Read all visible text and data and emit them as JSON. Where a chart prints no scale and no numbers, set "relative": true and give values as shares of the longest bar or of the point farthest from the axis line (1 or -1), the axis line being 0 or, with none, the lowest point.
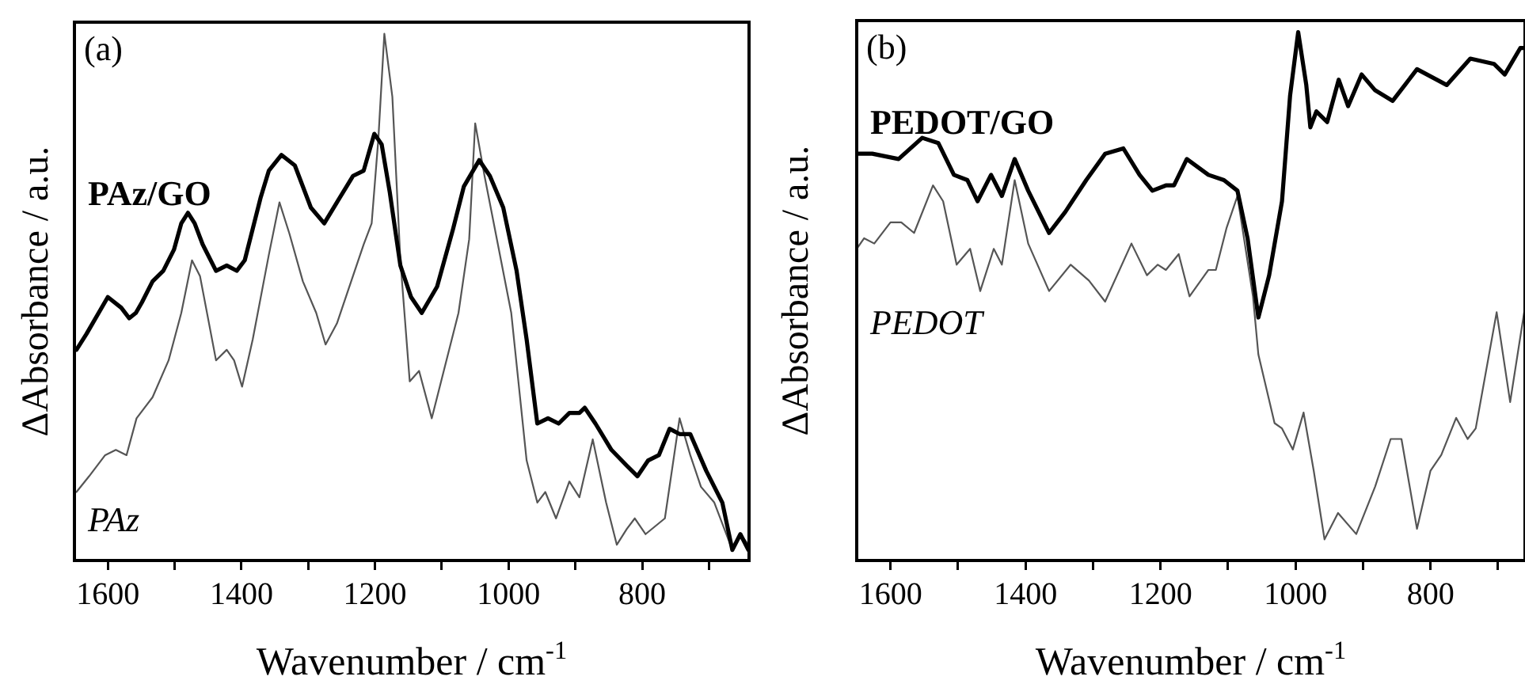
{
  "chart_data": [
    {
      "type": "line",
      "title": "(a)",
      "xlabel": "Wavenumber / cm$^{-1}$",
      "ylabel": "ΔAbsorbance / a.u.",
      "relative": true,
      "grid": false,
      "legend": false,
      "marker": "none",
      "line_style": "solid",
      "xlim": [
        1650,
        640
      ],
      "xticks": [
        1600,
        {
          "value": 1500,
          "label": null
        },
        1400,
        {
          "value": 1300,
          "label": null
        },
        1200,
        {
          "value": 1100,
          "label": null
        },
        1000,
        {
          "value": 900,
          "label": null
        },
        800,
        {
          "value": 700,
          "label": null
        }
      ],
      "series": [
        {
          "name": "PAz/GO",
          "color": "#000000",
          "x": [
            1647,
            1632,
            1600,
            1580,
            1568,
            1558,
            1549,
            1533,
            1517,
            1501,
            1490,
            1480,
            1470,
            1458,
            1438,
            1422,
            1407,
            1395,
            1383,
            1371,
            1359,
            1340,
            1320,
            1296,
            1276,
            1257,
            1233,
            1217,
            1201,
            1190,
            1178,
            1162,
            1146,
            1130,
            1107,
            1083,
            1067,
            1044,
            1028,
            1008,
            988,
            973,
            957,
            941,
            925,
            909,
            894,
            886,
            870,
            846,
            823,
            807,
            791,
            775,
            759,
            744,
            728,
            704,
            680,
            665,
            653,
            641
          ],
          "values": [
            0.4,
            0.43,
            0.5,
            0.48,
            0.46,
            0.47,
            0.49,
            0.53,
            0.55,
            0.59,
            0.64,
            0.66,
            0.64,
            0.6,
            0.55,
            0.56,
            0.55,
            0.57,
            0.63,
            0.69,
            0.74,
            0.77,
            0.75,
            0.67,
            0.64,
            0.68,
            0.73,
            0.74,
            0.81,
            0.79,
            0.7,
            0.56,
            0.5,
            0.47,
            0.52,
            0.63,
            0.71,
            0.76,
            0.73,
            0.67,
            0.55,
            0.42,
            0.26,
            0.27,
            0.26,
            0.28,
            0.28,
            0.29,
            0.26,
            0.21,
            0.18,
            0.16,
            0.19,
            0.2,
            0.25,
            0.24,
            0.24,
            0.17,
            0.11,
            0.02,
            0.05,
            0.02
          ]
        },
        {
          "name": "PAz",
          "color": "#555555",
          "x": [
            1647,
            1628,
            1604,
            1588,
            1572,
            1557,
            1533,
            1509,
            1490,
            1474,
            1462,
            1438,
            1422,
            1411,
            1399,
            1383,
            1359,
            1343,
            1328,
            1308,
            1288,
            1274,
            1257,
            1241,
            1217,
            1205,
            1195,
            1186,
            1174,
            1162,
            1148,
            1134,
            1115,
            1095,
            1075,
            1059,
            1050,
            1036,
            1016,
            996,
            973,
            957,
            945,
            929,
            909,
            894,
            874,
            854,
            838,
            823,
            811,
            795,
            766,
            744,
            728,
            712,
            692,
            665,
            653,
            641
          ],
          "values": [
            0.13,
            0.16,
            0.2,
            0.21,
            0.2,
            0.27,
            0.31,
            0.38,
            0.47,
            0.57,
            0.54,
            0.38,
            0.4,
            0.38,
            0.33,
            0.42,
            0.58,
            0.68,
            0.62,
            0.53,
            0.47,
            0.41,
            0.45,
            0.51,
            0.6,
            0.64,
            0.8,
            1.0,
            0.88,
            0.57,
            0.34,
            0.36,
            0.27,
            0.37,
            0.47,
            0.61,
            0.83,
            0.73,
            0.6,
            0.47,
            0.19,
            0.11,
            0.13,
            0.08,
            0.15,
            0.12,
            0.23,
            0.11,
            0.03,
            0.06,
            0.08,
            0.05,
            0.08,
            0.27,
            0.2,
            0.14,
            0.11,
            0.02,
            0.05,
            0.03
          ]
        }
      ]
    },
    {
      "type": "line",
      "title": "(b)",
      "xlabel": "Wavenumber / cm$^{-1}$",
      "ylabel": "ΔAbsorbance / a.u.",
      "relative": true,
      "grid": false,
      "legend": false,
      "marker": "none",
      "line_style": "solid",
      "xlim": [
        1650,
        660
      ],
      "xticks": [
        1600,
        {
          "value": 1500,
          "label": null
        },
        1400,
        {
          "value": 1300,
          "label": null
        },
        1200,
        {
          "value": 1100,
          "label": null
        },
        1000,
        {
          "value": 900,
          "label": null
        },
        800,
        {
          "value": 700,
          "label": null
        }
      ],
      "series": [
        {
          "name": "PEDOT/GO",
          "color": "#000000",
          "x": [
            1650,
            1627,
            1588,
            1553,
            1529,
            1506,
            1486,
            1471,
            1451,
            1435,
            1416,
            1396,
            1365,
            1341,
            1310,
            1282,
            1255,
            1231,
            1212,
            1192,
            1180,
            1161,
            1129,
            1106,
            1086,
            1071,
            1055,
            1039,
            1020,
            1008,
            996,
            984,
            978,
            969,
            953,
            936,
            922,
            902,
            882,
            856,
            820,
            776,
            741,
            706,
            690,
            667,
            660
          ],
          "values": [
            0.77,
            0.77,
            0.76,
            0.8,
            0.79,
            0.73,
            0.72,
            0.68,
            0.73,
            0.69,
            0.76,
            0.7,
            0.62,
            0.66,
            0.72,
            0.77,
            0.78,
            0.73,
            0.7,
            0.71,
            0.71,
            0.76,
            0.73,
            0.72,
            0.7,
            0.61,
            0.46,
            0.54,
            0.68,
            0.88,
            1.0,
            0.9,
            0.82,
            0.85,
            0.83,
            0.91,
            0.86,
            0.92,
            0.89,
            0.87,
            0.93,
            0.9,
            0.95,
            0.94,
            0.92,
            0.97,
            0.97
          ]
        },
        {
          "name": "PEDOT",
          "color": "#555555",
          "x": [
            1650,
            1639,
            1624,
            1600,
            1584,
            1565,
            1537,
            1522,
            1502,
            1482,
            1467,
            1447,
            1435,
            1416,
            1396,
            1365,
            1333,
            1306,
            1282,
            1243,
            1220,
            1204,
            1192,
            1173,
            1157,
            1129,
            1118,
            1102,
            1086,
            1063,
            1055,
            1031,
            1020,
            1004,
            988,
            973,
            957,
            937,
            910,
            882,
            859,
            843,
            820,
            800,
            784,
            762,
            745,
            733,
            702,
            682,
            660
          ],
          "values": [
            0.59,
            0.61,
            0.6,
            0.64,
            0.64,
            0.62,
            0.71,
            0.68,
            0.56,
            0.59,
            0.51,
            0.59,
            0.56,
            0.72,
            0.6,
            0.51,
            0.56,
            0.53,
            0.49,
            0.6,
            0.54,
            0.56,
            0.55,
            0.58,
            0.5,
            0.55,
            0.55,
            0.63,
            0.69,
            0.5,
            0.39,
            0.26,
            0.25,
            0.21,
            0.28,
            0.17,
            0.04,
            0.09,
            0.05,
            0.14,
            0.23,
            0.23,
            0.06,
            0.17,
            0.2,
            0.27,
            0.23,
            0.25,
            0.47,
            0.3,
            0.48
          ]
        }
      ]
    }
  ]
}
